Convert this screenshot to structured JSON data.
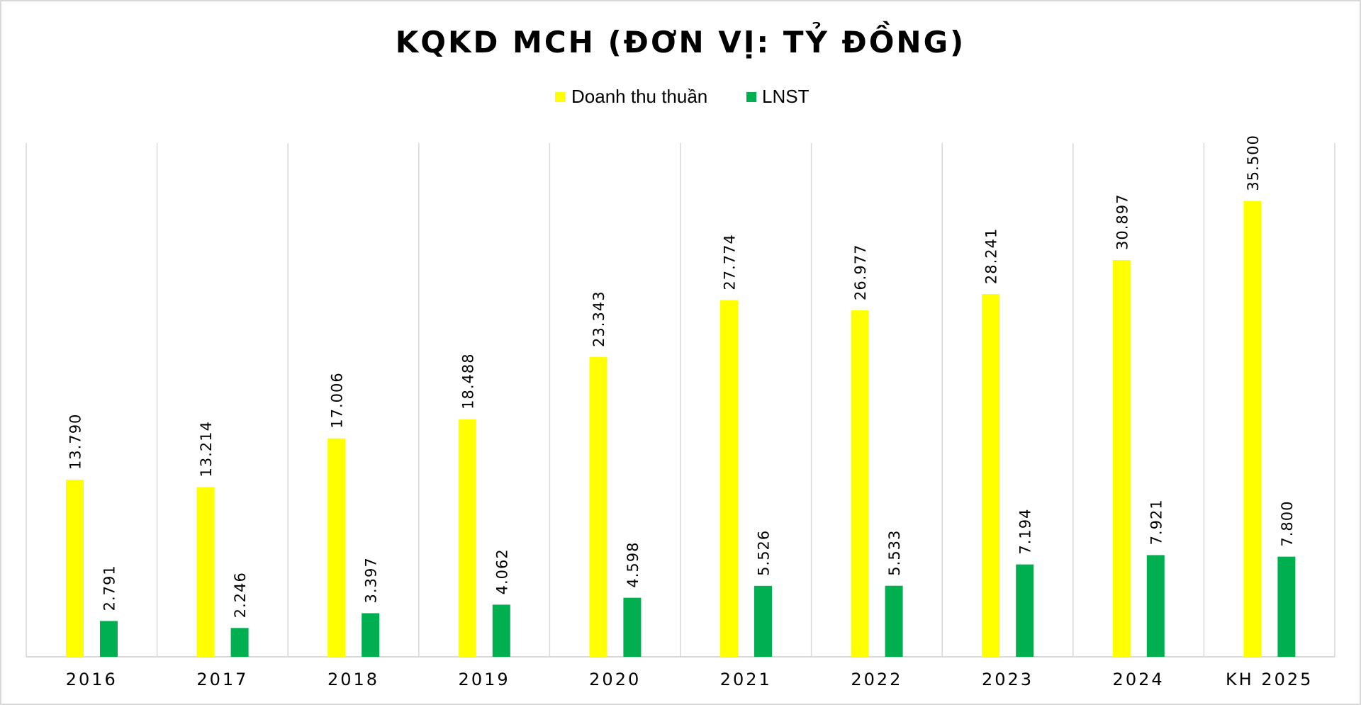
{
  "chart_data": {
    "type": "bar",
    "title": "KQKD MCH (ĐƠN VỊ: TỶ ĐỒNG)",
    "categories": [
      "2016",
      "2017",
      "2018",
      "2019",
      "2020",
      "2021",
      "2022",
      "2023",
      "2024",
      "KH 2025"
    ],
    "series": [
      {
        "name": "Doanh thu thuần",
        "color": "#ffff00",
        "values": [
          13790,
          13214,
          17006,
          18488,
          23343,
          27774,
          26977,
          28241,
          30897,
          35500
        ],
        "labels": [
          "13.790",
          "13.214",
          "17.006",
          "18.488",
          "23.343",
          "27.774",
          "26.977",
          "28.241",
          "30.897",
          "35.500"
        ]
      },
      {
        "name": "LNST",
        "color": "#00b050",
        "values": [
          2791,
          2246,
          3397,
          4062,
          4598,
          5526,
          5533,
          7194,
          7921,
          7800
        ],
        "labels": [
          "2.791",
          "2.246",
          "3.397",
          "4.062",
          "4.598",
          "5.526",
          "5.533",
          "7.194",
          "7.921",
          "7.800"
        ]
      }
    ],
    "ylim": [
      0,
      40000
    ],
    "grid": "vertical category separators",
    "legend_position": "top-center",
    "xlabel": "",
    "ylabel": ""
  }
}
